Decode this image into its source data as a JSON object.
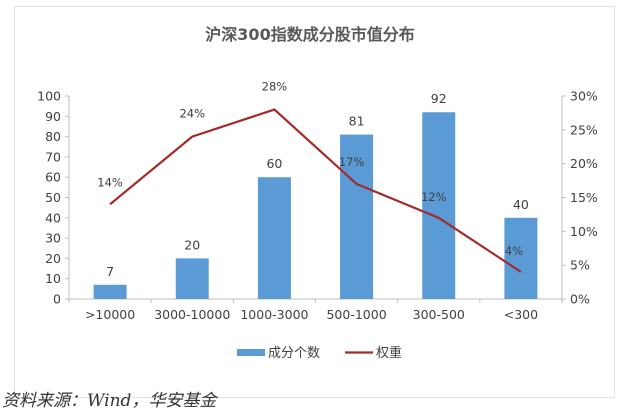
{
  "chart_data": {
    "type": "bar+line",
    "title": "沪深300指数成分股市值分布",
    "categories": [
      ">10000",
      "3000-10000",
      "1000-3000",
      "500-1000",
      "300-500",
      "<300"
    ],
    "series": [
      {
        "name": "成分个数",
        "type": "bar",
        "axis": "left",
        "color": "#5B9BD5",
        "values": [
          7,
          20,
          60,
          81,
          92,
          40
        ],
        "labels": [
          "7",
          "20",
          "60",
          "81",
          "92",
          "40"
        ]
      },
      {
        "name": "权重",
        "type": "line",
        "axis": "right",
        "color": "#A52A2A",
        "values": [
          14,
          24,
          28,
          17,
          12,
          4
        ],
        "labels": [
          "14%",
          "24%",
          "28%",
          "17%",
          "12%",
          "4%"
        ]
      }
    ],
    "y_left": {
      "range": [
        0,
        100
      ],
      "ticks": [
        "0",
        "10",
        "20",
        "30",
        "40",
        "50",
        "60",
        "70",
        "80",
        "90",
        "100"
      ]
    },
    "y_right": {
      "range": [
        0,
        30
      ],
      "unit": "%",
      "ticks": [
        "0%",
        "5%",
        "10%",
        "15%",
        "20%",
        "25%",
        "30%"
      ]
    },
    "grid": false,
    "legend": "bottom"
  },
  "source": "资料来源：Wind，华安基金"
}
